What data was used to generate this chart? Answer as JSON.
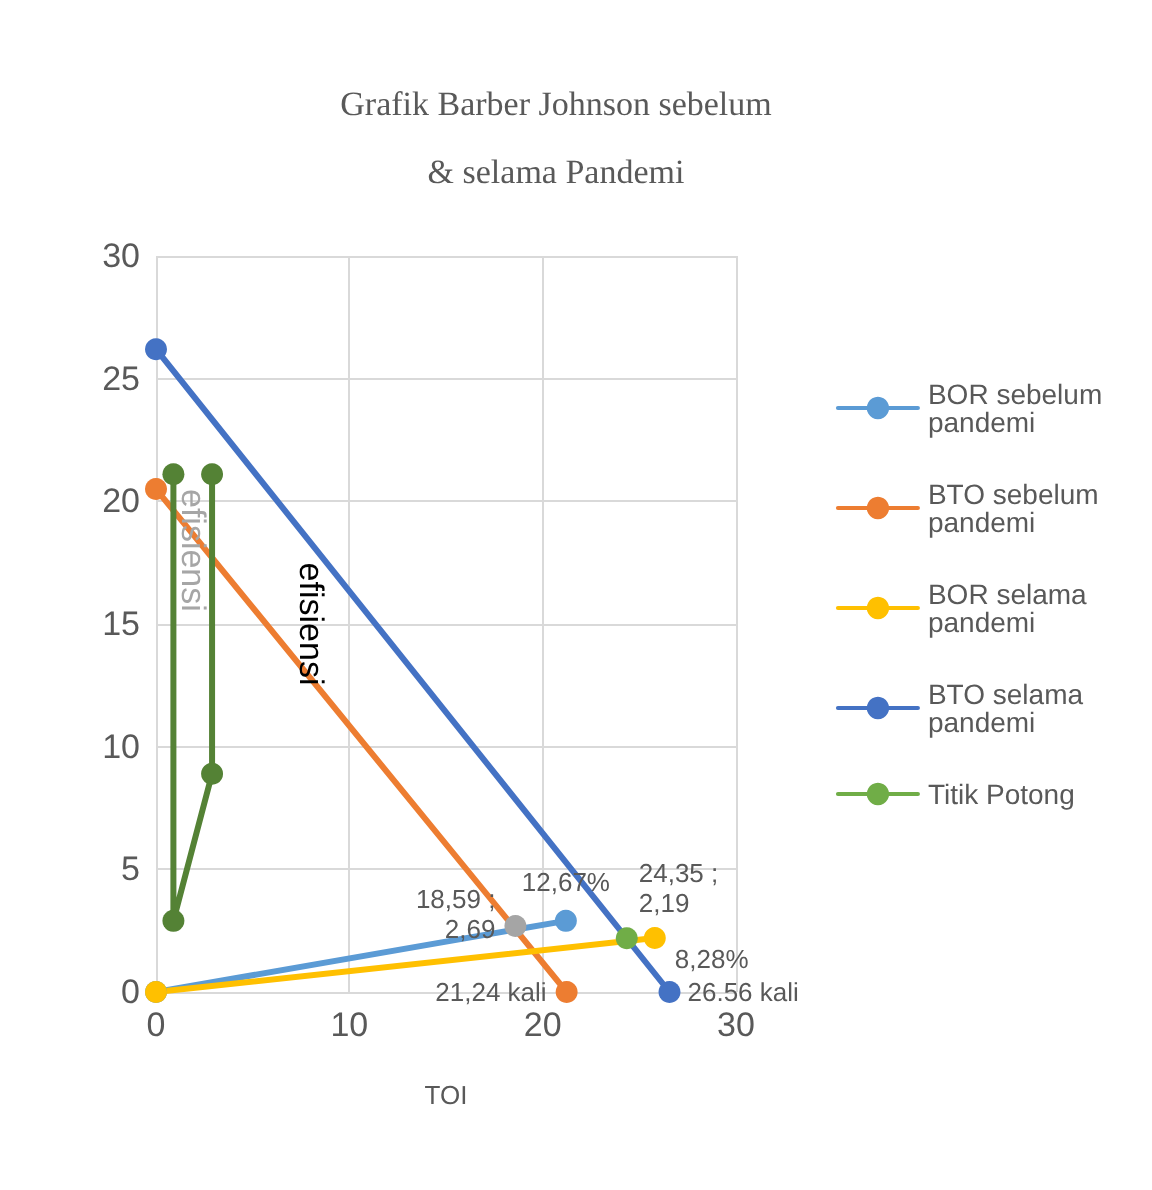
{
  "chart_data": {
    "type": "line",
    "title": "Grafik Barber Johnson sebelum\n& selama Pandemi",
    "xlabel": "TOI",
    "series": [
      {
        "name": "BOR sebelum pandemi",
        "color": "#5b9bd5",
        "x": [
          0,
          21.2
        ],
        "values": [
          0,
          2.9
        ]
      },
      {
        "name": "BTO sebelum pandemi",
        "color": "#ed7d31",
        "x": [
          0,
          21.24
        ],
        "values": [
          20.5,
          0
        ]
      },
      {
        "color": "#a5a5a5",
        "x": [
          18.59
        ],
        "values": [
          2.69
        ]
      },
      {
        "name": "BOR selama pandemi",
        "color": "#ffc000",
        "x": [
          0,
          25.8
        ],
        "values": [
          0,
          2.2
        ]
      },
      {
        "name": "BTO selama pandemi",
        "color": "#4472c4",
        "x": [
          0,
          26.56
        ],
        "values": [
          26.2,
          0
        ]
      },
      {
        "name": "Titik Potong",
        "color": "#70ad47",
        "x": [
          24.35
        ],
        "values": [
          2.19
        ]
      },
      {
        "color": "#548235",
        "x": [
          0.9,
          0.9,
          2.9,
          2.9
        ],
        "values": [
          21.1,
          2.9,
          8.9,
          21.1
        ]
      }
    ],
    "xlim": [
      0,
      30
    ],
    "xticks": [
      0,
      10,
      20,
      30
    ],
    "ylim": [
      0,
      30
    ],
    "yticks": [
      0,
      5,
      10,
      15,
      20,
      25,
      30
    ],
    "grid": true,
    "legend": "right",
    "marker": "circle",
    "annotations": [
      "efisiensi",
      "efisiensi",
      {
        "text": "18,59 ;\n2,69",
        "x": 18.59,
        "y": 2.69
      },
      {
        "text": "12,67%",
        "x": 21.2,
        "y": 2.9
      },
      {
        "text": "24,35 ;\n2,19",
        "x": 24.35,
        "y": 2.19
      },
      {
        "text": "8,28%",
        "x": 25.8,
        "y": 2.2
      },
      {
        "text": "21,24 kali",
        "x": 21.24,
        "y": 0
      },
      {
        "text": "26.56 kali",
        "x": 26.56,
        "y": 0
      }
    ]
  }
}
